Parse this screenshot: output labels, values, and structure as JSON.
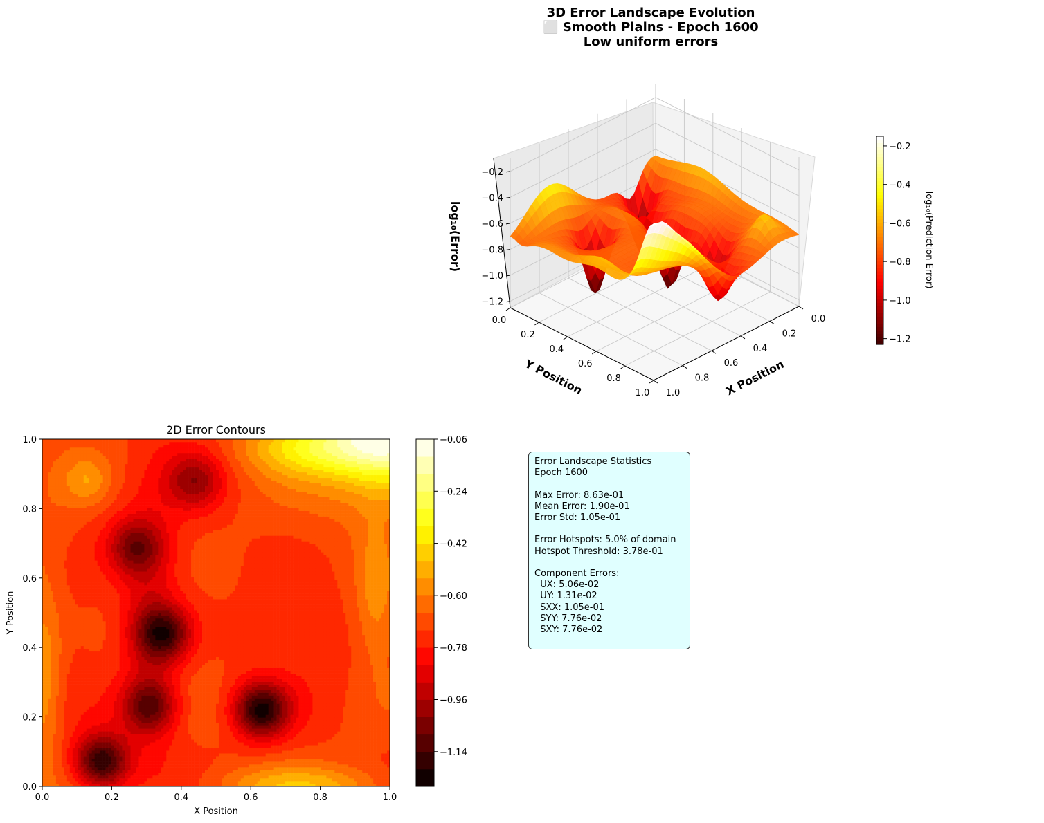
{
  "figure": {
    "title_lines": [
      "3D Error Landscape Evolution",
      "⬜ Smooth Plains - Epoch 1600",
      "Low uniform errors"
    ]
  },
  "chart_data": [
    {
      "type": "surface3d",
      "title": "3D Error Landscape Evolution ⬜ Smooth Plains - Epoch 1600 Low uniform errors",
      "xlabel": "X Position",
      "ylabel": "Y Position",
      "zlabel": "log₁₀(Error)",
      "x_ticks": [
        "0.0",
        "0.2",
        "0.4",
        "0.6",
        "0.8",
        "1.0"
      ],
      "y_ticks": [
        "0.0",
        "0.2",
        "0.4",
        "0.6",
        "0.8",
        "1.0"
      ],
      "z_ticks": [
        "−1.2",
        "−1.0",
        "−0.8",
        "−0.6",
        "−0.4",
        "−0.2"
      ],
      "xlim": [
        0,
        1
      ],
      "ylim": [
        0,
        1
      ],
      "zlim": [
        -1.25,
        -0.1
      ],
      "colormap": "hot",
      "colorbar": {
        "label": "log₁₀(Prediction Error)",
        "ticks": [
          "−0.2",
          "−0.4",
          "−0.6",
          "−0.8",
          "−1.0",
          "−1.2"
        ],
        "range": [
          -1.23,
          -0.15
        ]
      },
      "grid": true
    },
    {
      "type": "contour",
      "title": "2D Error Contours",
      "xlabel": "X Position",
      "ylabel": "Y Position",
      "x_ticks": [
        "0.0",
        "0.2",
        "0.4",
        "0.6",
        "0.8",
        "1.0"
      ],
      "y_ticks": [
        "0.0",
        "0.2",
        "0.4",
        "0.6",
        "0.8",
        "1.0"
      ],
      "xlim": [
        0,
        1
      ],
      "ylim": [
        0,
        1
      ],
      "colormap": "hot",
      "levels": 20,
      "colorbar": {
        "ticks": [
          "−0.06",
          "−0.24",
          "−0.42",
          "−0.60",
          "−0.78",
          "−0.96",
          "−1.14"
        ],
        "range": [
          -1.26,
          -0.06
        ]
      },
      "features": {
        "minima": [
          {
            "x": 0.63,
            "y": 0.22,
            "z": -1.2
          },
          {
            "x": 0.17,
            "y": 0.07,
            "z": -1.2
          },
          {
            "x": 0.35,
            "y": 0.44,
            "z": -1.1
          },
          {
            "x": 0.31,
            "y": 0.23,
            "z": -1.05
          },
          {
            "x": 0.27,
            "y": 0.69,
            "z": -1.0
          },
          {
            "x": 0.44,
            "y": 0.88,
            "z": -0.95
          }
        ],
        "maxima": [
          {
            "x": 0.98,
            "y": 0.98,
            "z": -0.06
          },
          {
            "x": 0.12,
            "y": 0.88,
            "z": -0.65
          }
        ]
      }
    }
  ],
  "stats": {
    "lines": [
      "Error Landscape Statistics",
      "Epoch 1600",
      "",
      "Max Error: 8.63e-01",
      "Mean Error: 1.90e-01",
      "Error Std: 1.05e-01",
      "",
      "Error Hotspots: 5.0% of domain",
      "Hotspot Threshold: 3.78e-01",
      "",
      "Component Errors:",
      "  UX: 5.06e-02",
      "  UY: 1.31e-02",
      "  SXX: 1.05e-01",
      "  SYY: 7.76e-02",
      "  SXY: 7.76e-02"
    ]
  }
}
